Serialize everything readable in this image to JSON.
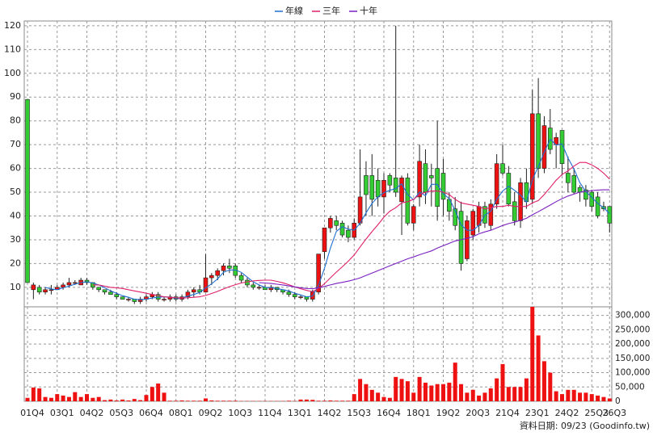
{
  "chart_data": [
    {
      "type": "candlestick",
      "categories": [
        "01Q4",
        null,
        null,
        null,
        null,
        "03Q1",
        null,
        null,
        null,
        null,
        "04Q2",
        null,
        null,
        null,
        null,
        "05Q3",
        null,
        null,
        null,
        null,
        "06Q4",
        null,
        null,
        null,
        null,
        "08Q1",
        null,
        null,
        null,
        null,
        "09Q2",
        null,
        null,
        null,
        null,
        "10Q3",
        null,
        null,
        null,
        null,
        "11Q4",
        null,
        null,
        null,
        null,
        "13Q1",
        null,
        null,
        null,
        null,
        "14Q2",
        null,
        null,
        null,
        null,
        "15Q3",
        null,
        null,
        null,
        null,
        "16Q4",
        null,
        null,
        null,
        null,
        "18Q1",
        null,
        null,
        null,
        null,
        "19Q2",
        null,
        null,
        null,
        null,
        "20Q3",
        null,
        null,
        null,
        null,
        "21Q4",
        null,
        null,
        null,
        null,
        "23Q1",
        null,
        null,
        null,
        null,
        "24Q2",
        null,
        null,
        null,
        null,
        "25Q3",
        null,
        null,
        "26Q3"
      ],
      "open": [
        89,
        9,
        10,
        8,
        9,
        9,
        10,
        11,
        12,
        11,
        13,
        12,
        10,
        9,
        8,
        7,
        6,
        5,
        5,
        4,
        5,
        6,
        7,
        5,
        5,
        6,
        5,
        6,
        8,
        9,
        8,
        14,
        15,
        17,
        19,
        19,
        15,
        13,
        11,
        10,
        10,
        9,
        10,
        9,
        8,
        7,
        6,
        6,
        5,
        8,
        25,
        35,
        38,
        37,
        34,
        31,
        37,
        57,
        57,
        55,
        48,
        57,
        56,
        46,
        56,
        37,
        48,
        62,
        57,
        60,
        58,
        47,
        43,
        42,
        22,
        32,
        36,
        44,
        36,
        45,
        62,
        58,
        46,
        38,
        54,
        47,
        83,
        60,
        77,
        70,
        76,
        58,
        57,
        52,
        51,
        50,
        48,
        44,
        44
      ],
      "high": [
        89,
        12,
        11,
        10,
        11,
        11,
        12,
        14,
        13,
        14,
        14,
        12,
        10,
        9,
        9,
        8,
        6,
        6,
        5,
        6,
        7,
        8,
        8,
        6,
        7,
        7,
        7,
        9,
        10,
        11,
        24,
        16,
        18,
        20,
        22,
        20,
        16,
        14,
        12,
        11,
        11,
        11,
        10,
        9,
        9,
        8,
        7,
        6,
        9,
        24,
        35,
        40,
        40,
        38,
        36,
        39,
        68,
        63,
        66,
        60,
        58,
        58,
        120,
        57,
        58,
        45,
        70,
        68,
        62,
        80,
        64,
        50,
        48,
        46,
        40,
        43,
        46,
        46,
        47,
        66,
        70,
        61,
        50,
        56,
        60,
        93,
        98,
        82,
        85,
        75,
        76,
        65,
        60,
        53,
        53,
        51,
        50,
        46,
        44
      ],
      "low": [
        12,
        5,
        7,
        7,
        7,
        9,
        9,
        10,
        11,
        11,
        11,
        9,
        8,
        7,
        7,
        5,
        5,
        4,
        3,
        3,
        4,
        5,
        4,
        4,
        4,
        4,
        4,
        5,
        6,
        7,
        8,
        11,
        13,
        15,
        16,
        14,
        12,
        10,
        9,
        9,
        9,
        8,
        8,
        7,
        6,
        5,
        5,
        4,
        4,
        7,
        22,
        33,
        34,
        31,
        29,
        30,
        36,
        40,
        40,
        44,
        41,
        50,
        48,
        32,
        36,
        34,
        44,
        45,
        44,
        38,
        40,
        38,
        34,
        17,
        21,
        30,
        33,
        35,
        34,
        43,
        57,
        44,
        36,
        35,
        43,
        45,
        56,
        58,
        66,
        60,
        57,
        50,
        49,
        46,
        44,
        42,
        39,
        42,
        33
      ],
      "close": [
        12,
        11,
        8,
        9,
        9,
        10,
        11,
        12,
        12,
        13,
        12,
        10,
        9,
        8,
        7,
        6,
        5,
        5,
        4,
        5,
        6,
        7,
        5,
        5,
        6,
        5,
        6,
        8,
        9,
        8,
        14,
        15,
        17,
        19,
        18,
        15,
        13,
        11,
        10,
        10,
        9,
        10,
        9,
        8,
        7,
        6,
        6,
        5,
        8,
        24,
        35,
        39,
        36,
        32,
        31,
        37,
        48,
        49,
        47,
        48,
        55,
        53,
        50,
        56,
        37,
        44,
        63,
        50,
        56,
        44,
        47,
        42,
        36,
        20,
        38,
        42,
        44,
        37,
        45,
        62,
        58,
        45,
        38,
        54,
        46,
        83,
        60,
        78,
        68,
        73,
        62,
        54,
        50,
        50,
        47,
        44,
        40,
        43,
        37
      ],
      "up_color": "#ee1111",
      "down_color": "#33cc33",
      "series": [
        {
          "name": "年線",
          "color": "#1f6fd0",
          "values": [
            null,
            null,
            null,
            10,
            9.3,
            9,
            9.8,
            10.5,
            11.3,
            12,
            12.3,
            11.8,
            11,
            9.8,
            8.5,
            7.5,
            6.5,
            5.8,
            5,
            4.8,
            5,
            5.5,
            5.8,
            6,
            5.8,
            5.3,
            5.5,
            6.3,
            7,
            7.8,
            9.8,
            11.5,
            13.5,
            16.3,
            17.3,
            17.3,
            16.3,
            14.3,
            12.3,
            11,
            10,
            9.8,
            9.5,
            9,
            8.5,
            7.5,
            6.8,
            6,
            6.3,
            10.8,
            18,
            26.5,
            33.5,
            35.5,
            34.5,
            34,
            37,
            41.3,
            45.3,
            48,
            49.8,
            50.8,
            51.5,
            53.5,
            49,
            46.8,
            50,
            48.5,
            53.3,
            53.3,
            49.3,
            47.3,
            42.3,
            36.3,
            34,
            34,
            36,
            40.3,
            42,
            47,
            50.5,
            52.5,
            50.8,
            48.8,
            45.8,
            55.3,
            60.8,
            66.8,
            72.3,
            69.8,
            70.3,
            64.3,
            59.8,
            54,
            50.3,
            47.8,
            45.3,
            43.5,
            41
          ]
        },
        {
          "name": "三年",
          "color": "#e0206a",
          "values": [
            null,
            null,
            null,
            null,
            null,
            null,
            null,
            null,
            null,
            null,
            null,
            11,
            11,
            10.5,
            10,
            9.8,
            9.5,
            9,
            8.5,
            8,
            7.5,
            7,
            6.5,
            6,
            5.8,
            5.6,
            5.5,
            5.6,
            5.8,
            6,
            6.6,
            7.4,
            8.3,
            9.3,
            10.3,
            11.1,
            11.8,
            12.3,
            12.7,
            12.9,
            13,
            13,
            12.5,
            11.9,
            11.1,
            10.2,
            9.4,
            8.7,
            8.2,
            9.5,
            11.5,
            14,
            16.4,
            18.6,
            21,
            23.6,
            27,
            30.3,
            33.4,
            36.3,
            39.5,
            42,
            43.5,
            45.5,
            46,
            47,
            49,
            50,
            50.5,
            50.5,
            50,
            49,
            47,
            45.5,
            45,
            44.5,
            44,
            43,
            43.5,
            44,
            44,
            44.5,
            44,
            44,
            44,
            45.5,
            46.5,
            49,
            52,
            55,
            57.5,
            59,
            61,
            62.5,
            62.5,
            61.5,
            60,
            58,
            55.5
          ]
        },
        {
          "name": "十年",
          "color": "#7a1fc0",
          "values": [
            null,
            null,
            null,
            null,
            null,
            null,
            null,
            null,
            null,
            null,
            null,
            null,
            null,
            null,
            null,
            null,
            null,
            null,
            null,
            null,
            null,
            null,
            null,
            null,
            null,
            null,
            null,
            null,
            null,
            null,
            null,
            null,
            null,
            null,
            null,
            null,
            null,
            null,
            null,
            12,
            11.8,
            11.6,
            11.3,
            11,
            10.6,
            10.2,
            9.8,
            9.5,
            9.4,
            9.8,
            10.4,
            11,
            11.6,
            12.1,
            12.6,
            13.2,
            14,
            15,
            16,
            17,
            18,
            19,
            20,
            21,
            22,
            22.8,
            23.7,
            24.5,
            25.3,
            26.5,
            27.5,
            28.5,
            29.5,
            30,
            30.6,
            31.3,
            32.5,
            33.3,
            34,
            35,
            36,
            36.8,
            37.4,
            38.2,
            39,
            40.5,
            41.8,
            43.2,
            44.6,
            46,
            47.3,
            48.4,
            49.2,
            50,
            50.4,
            50.7,
            50.9,
            51,
            51
          ]
        }
      ],
      "ylim": [
        1.8,
        122
      ],
      "yticks": [
        10,
        20,
        30,
        40,
        50,
        60,
        70,
        80,
        90,
        100,
        110,
        120
      ],
      "grid": true
    },
    {
      "type": "bar",
      "color": "#ee1111",
      "values": [
        12000,
        48000,
        45000,
        15000,
        12000,
        25000,
        20000,
        15000,
        32000,
        15000,
        25000,
        12000,
        15000,
        4000,
        6000,
        3000,
        6000,
        3000,
        8000,
        4000,
        22000,
        50000,
        62000,
        30000,
        2000,
        2000,
        3000,
        2000,
        2000,
        2000,
        10000,
        3000,
        2000,
        2000,
        2000,
        2000,
        1000,
        1000,
        1000,
        1000,
        1000,
        1000,
        1000,
        1000,
        2000,
        1000,
        6000,
        6000,
        5000,
        2000,
        2000,
        3000,
        2000,
        2000,
        2000,
        25000,
        78000,
        60000,
        40000,
        30000,
        15000,
        12000,
        85000,
        78000,
        70000,
        30000,
        85000,
        65000,
        55000,
        60000,
        60000,
        65000,
        135000,
        60000,
        30000,
        40000,
        20000,
        30000,
        45000,
        80000,
        130000,
        50000,
        50000,
        50000,
        80000,
        330000,
        230000,
        140000,
        100000,
        35000,
        25000,
        40000,
        40000,
        30000,
        30000,
        25000,
        20000,
        15000,
        10000
      ],
      "ylim": [
        0,
        330000
      ],
      "yticks": [
        0,
        {
          "value": 50000,
          "label": "50,000"
        },
        {
          "value": 100000,
          "label": "100,000"
        },
        {
          "value": 150000,
          "label": "150,000"
        },
        {
          "value": 200000,
          "label": "200,000"
        },
        {
          "value": 250000,
          "label": "250,000"
        },
        {
          "value": 300000,
          "label": "300,000"
        }
      ],
      "grid": true
    }
  ],
  "footer": "資料日期: 09/23 (Goodinfo.tw)"
}
